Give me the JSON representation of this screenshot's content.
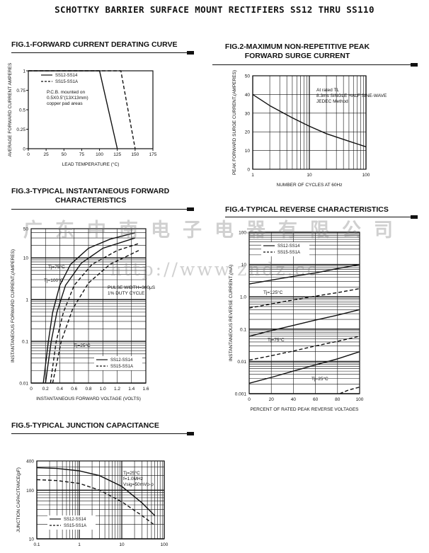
{
  "page_title": "SCHOTTKY BARRIER SURFACE MOUNT RECTIFIERS SS12 THRU SS110",
  "watermark": {
    "company": "广东中南电子电器有限公司",
    "url": "http://www.zndz.cc"
  },
  "chart_data": [
    {
      "id": "fig1",
      "type": "line",
      "title": "FIG.1-FORWARD CURRENT DERATING CURVE",
      "xlabel": "LEAD TEMPERATURE (°C)",
      "ylabel": "AVERAGE FORWARD CURRENT AMPERES",
      "xlim": [
        0,
        175
      ],
      "ylim": [
        0,
        1
      ],
      "x_ticks": [
        "0",
        "25",
        "50",
        "75",
        "100",
        "125",
        "150",
        "175"
      ],
      "y_ticks": [
        "0",
        "0.25",
        "0.5",
        "0.75",
        "1"
      ],
      "legend": [
        "SS12-SS14",
        "SS15-SS1A"
      ],
      "note": "P.C.B. mounted on 0.5X0.5\"(13X13mm) copper pad areas",
      "grid": false,
      "series": [
        {
          "name": "SS12-SS14",
          "style": "solid",
          "x": [
            0,
            100,
            125
          ],
          "y": [
            1,
            1,
            0
          ]
        },
        {
          "name": "SS15-SS1A",
          "style": "dashed",
          "x": [
            0,
            130,
            150
          ],
          "y": [
            1,
            1,
            0
          ]
        }
      ]
    },
    {
      "id": "fig2",
      "type": "line",
      "title": [
        "FIG.2-MAXIMUM NON-REPETITIVE PEAK",
        "FORWARD SURGE CURRENT"
      ],
      "xlabel": "NUMBER OF CYCLES AT 60Hz",
      "ylabel": "PEAK FORWARD SURGE CURRENT,(AMPERES)",
      "xscale": "log",
      "xlim": [
        1,
        100
      ],
      "ylim": [
        0,
        50
      ],
      "x_ticks": [
        "1",
        "10",
        "100"
      ],
      "y_ticks": [
        "0",
        "10",
        "20",
        "30",
        "40",
        "50"
      ],
      "note": [
        "At rated TL",
        "8.3ms SINGLE HALF SINE-WAVE",
        "JEDEC Method"
      ],
      "grid": true,
      "series": [
        {
          "style": "solid",
          "x": [
            1,
            2,
            5,
            10,
            20,
            50,
            100
          ],
          "y": [
            40,
            34,
            27.5,
            23,
            19,
            15,
            12
          ]
        }
      ]
    },
    {
      "id": "fig3",
      "type": "line",
      "title": [
        "FIG.3-TYPICAL INSTANTANEOUS FORWARD",
        "CHARACTERISTICS"
      ],
      "xlabel": "INSTANTANEOUS FORWARD VOLTAGE (VOLTS)",
      "ylabel": "INSTANTANEOUS FORWARD CURRENT,(AMPERES)",
      "yscale": "log",
      "xlim": [
        0,
        1.6
      ],
      "ylim": [
        0.01,
        50
      ],
      "x_ticks": [
        "0",
        "0.2",
        "0.4",
        "0.6",
        "0.8",
        "1.0",
        "1.2",
        "1.4",
        "1.6"
      ],
      "y_ticks": [
        "0.01",
        "0.1",
        "1",
        "10",
        "50"
      ],
      "legend": [
        "SS12-SS14",
        "SS15-SS1A"
      ],
      "note": [
        "PULSE WIDTH=300μS",
        "1% DUTY CYCLE"
      ],
      "annotations": [
        "Tj=75°C",
        "Tj=100°C",
        "Tj=25°C"
      ],
      "grid": true,
      "series": [
        {
          "name": "SS12-SS14",
          "style": "solid",
          "x": [
            0.17,
            0.24,
            0.3,
            0.4,
            0.55,
            0.8,
            1.1,
            1.45
          ],
          "y": [
            0.01,
            0.1,
            0.5,
            2.2,
            7,
            17,
            28,
            40
          ]
        },
        {
          "name": "SS12-SS14",
          "style": "solid",
          "x": [
            0.2,
            0.28,
            0.36,
            0.48,
            0.7,
            1.0,
            1.45
          ],
          "y": [
            0.01,
            0.1,
            0.5,
            2.2,
            7.5,
            17,
            30
          ]
        },
        {
          "name": "SS15-SS1A",
          "style": "dashed",
          "x": [
            0.27,
            0.35,
            0.45,
            0.6,
            0.85,
            1.2,
            1.5
          ],
          "y": [
            0.01,
            0.1,
            0.5,
            2.2,
            7,
            15,
            22
          ]
        },
        {
          "name": "SS15-SS1A",
          "style": "dashed",
          "x": [
            0.3,
            0.42,
            0.58,
            0.8,
            1.1,
            1.5
          ],
          "y": [
            0.01,
            0.1,
            0.6,
            2.5,
            7,
            15
          ]
        }
      ]
    },
    {
      "id": "fig4",
      "type": "line",
      "title": "FIG.4-TYPICAL REVERSE CHARACTERISTICS",
      "xlabel": "PERCENT OF RATED PEAK REVERSE VOLTAGES",
      "ylabel": "INSTANTANEOUS REVERSE CURRENT (mA)",
      "yscale": "log",
      "xlim": [
        0,
        100
      ],
      "ylim": [
        0.001,
        100
      ],
      "x_ticks": [
        "0",
        "20",
        "40",
        "60",
        "80",
        "100"
      ],
      "y_ticks": [
        "0.001",
        "0.01",
        "0.1",
        "1.0",
        "10",
        "100"
      ],
      "legend": [
        "SS12-SS14",
        "SS15-SS1A"
      ],
      "annotations": [
        "Tj=125°C",
        "Tj=75°C",
        "Tj=25°C"
      ],
      "grid": true,
      "series": [
        {
          "name": "SS12-SS14",
          "style": "solid",
          "x": [
            0,
            20,
            40,
            60,
            80,
            100
          ],
          "y": [
            2.5,
            3.3,
            4.3,
            5.5,
            7.5,
            10
          ]
        },
        {
          "name": "SS15-SS1A",
          "style": "dashed",
          "x": [
            0,
            20,
            40,
            60,
            80,
            100
          ],
          "y": [
            0.45,
            0.6,
            0.8,
            1.05,
            1.35,
            1.8
          ]
        },
        {
          "name": "SS12-SS14",
          "style": "solid",
          "x": [
            0,
            20,
            40,
            60,
            80,
            100
          ],
          "y": [
            0.06,
            0.09,
            0.13,
            0.19,
            0.27,
            0.4
          ]
        },
        {
          "name": "SS15-SS1A",
          "style": "dashed",
          "x": [
            0,
            20,
            40,
            60,
            80,
            100
          ],
          "y": [
            0.011,
            0.015,
            0.021,
            0.03,
            0.042,
            0.06
          ]
        },
        {
          "name": "SS12-SS14",
          "style": "solid",
          "x": [
            0,
            20,
            40,
            60,
            80,
            100
          ],
          "y": [
            0.0021,
            0.0032,
            0.005,
            0.0078,
            0.012,
            0.02
          ]
        },
        {
          "name": "SS15-SS1A",
          "style": "dashed",
          "x": [
            82,
            90,
            100
          ],
          "y": [
            0.001,
            0.0013,
            0.0016
          ]
        }
      ]
    },
    {
      "id": "fig5",
      "type": "line",
      "title": "FIG.5-TYPICAL JUNCTION CAPACITANCE",
      "xlabel": "",
      "ylabel": "JUNCTION CAPACITANCE(pF)",
      "xscale": "log",
      "yscale": "log",
      "xlim": [
        0.1,
        100
      ],
      "ylim": [
        10,
        400
      ],
      "x_ticks": [
        "0.1",
        "1",
        "10",
        "100"
      ],
      "y_ticks": [
        "10",
        "100",
        "400"
      ],
      "legend": [
        "SS12-SS14",
        "SS15-SS1A"
      ],
      "note": [
        "Tj=25°C",
        "f=1.0MHz",
        "Vsig=50mVp-p"
      ],
      "grid": true,
      "series": [
        {
          "name": "SS12-SS14",
          "style": "solid",
          "x": [
            0.1,
            0.3,
            1,
            3,
            10,
            30,
            60
          ],
          "y": [
            290,
            280,
            250,
            200,
            120,
            55,
            30
          ]
        },
        {
          "name": "SS15-SS1A",
          "style": "dashed",
          "x": [
            0.1,
            0.3,
            1,
            3,
            10,
            30,
            60
          ],
          "y": [
            165,
            158,
            138,
            100,
            58,
            30,
            19
          ]
        }
      ]
    }
  ]
}
